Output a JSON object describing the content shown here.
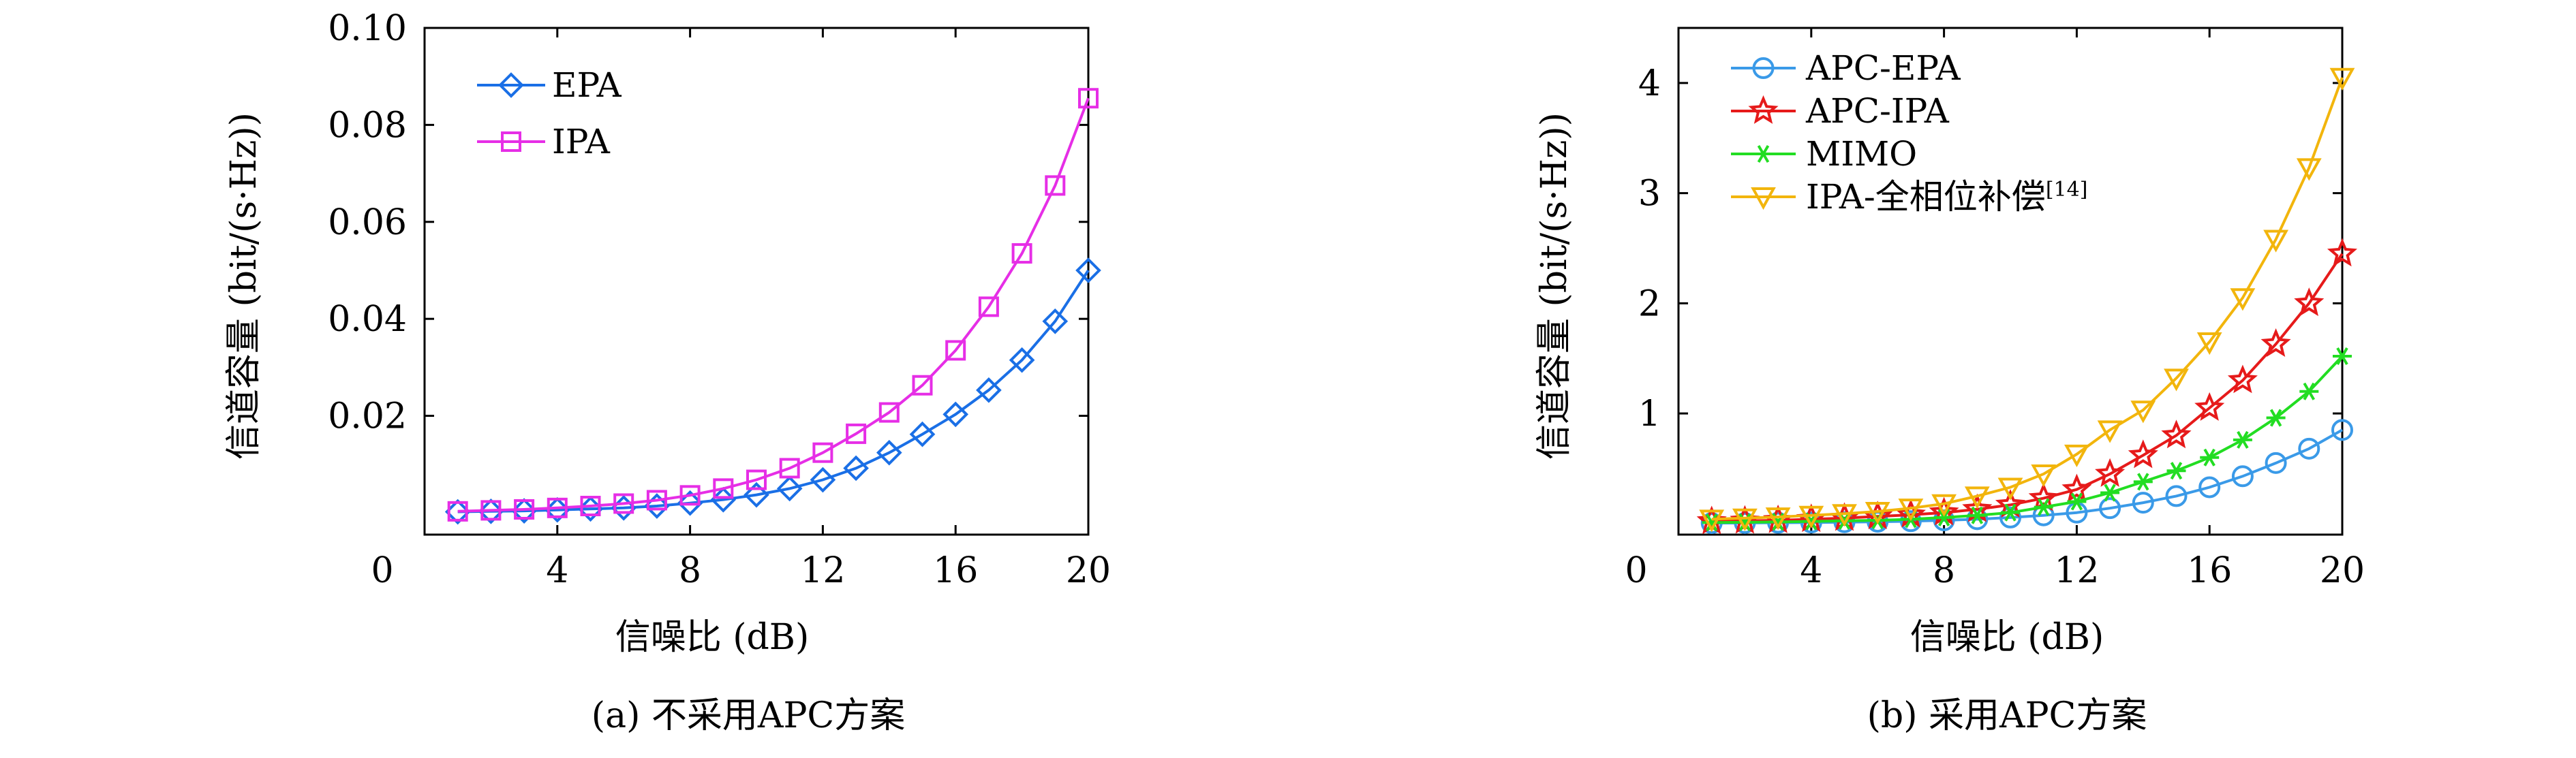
{
  "colors": {
    "EPA": "#1a6fe6",
    "IPA": "#e62ee6",
    "APC-EPA": "#3a9ae8",
    "APC-IPA": "#e61a1a",
    "MIMO": "#22dd22",
    "IPA-全相位补偿": "#f2b50c"
  },
  "chart_data": [
    {
      "type": "line",
      "caption": "(a) 不采用APC方案",
      "xlabel": "信噪比 (dB)",
      "ylabel": "信道容量 (bit/(s·Hz))",
      "xlim": [
        0,
        20
      ],
      "ylim": [
        -0.0045,
        0.1
      ],
      "xticks": [
        0,
        4,
        8,
        12,
        16,
        20
      ],
      "xtick_labels": [
        "0",
        "4",
        "8",
        "12",
        "16",
        "20"
      ],
      "yticks": [
        0.02,
        0.04,
        0.06,
        0.08,
        0.1
      ],
      "ytick_labels": [
        "0.02",
        "0.04",
        "0.06",
        "0.08",
        "0.10"
      ],
      "grid": false,
      "legend_position": "top-left",
      "x": [
        1,
        2,
        3,
        4,
        5,
        6,
        7,
        8,
        9,
        10,
        11,
        12,
        13,
        14,
        15,
        16,
        17,
        18,
        19,
        20
      ],
      "series": [
        {
          "name": "EPA",
          "marker": "diamond",
          "values": [
            0.0002,
            0.0003,
            0.0004,
            0.0006,
            0.0008,
            0.001,
            0.0014,
            0.002,
            0.0027,
            0.0037,
            0.005,
            0.0068,
            0.0092,
            0.0124,
            0.0162,
            0.0203,
            0.0253,
            0.0315,
            0.0395,
            0.05
          ]
        },
        {
          "name": "IPA",
          "marker": "square",
          "values": [
            0.0003,
            0.0005,
            0.0007,
            0.001,
            0.0014,
            0.0019,
            0.0026,
            0.0036,
            0.005,
            0.0068,
            0.0092,
            0.0124,
            0.0163,
            0.0207,
            0.0263,
            0.0335,
            0.0425,
            0.0535,
            0.0675,
            0.0855
          ]
        }
      ]
    },
    {
      "type": "line",
      "caption": "(b) 采用APC方案",
      "xlabel": "信噪比 (dB)",
      "ylabel": "信道容量 (bit/(s·Hz))",
      "xlim": [
        0,
        20
      ],
      "ylim": [
        -0.1,
        4.5
      ],
      "xticks": [
        0,
        4,
        8,
        12,
        16,
        20
      ],
      "xtick_labels": [
        "0",
        "4",
        "8",
        "12",
        "16",
        "20"
      ],
      "yticks": [
        1,
        2,
        3,
        4
      ],
      "ytick_labels": [
        "1",
        "2",
        "3",
        "4"
      ],
      "grid": false,
      "legend_position": "top-left",
      "legend_labels": [
        "APC-EPA",
        "APC-IPA",
        "MIMO",
        "IPA-全相位补偿"
      ],
      "legend_reference": "[14]",
      "x": [
        1,
        2,
        3,
        4,
        5,
        6,
        7,
        8,
        9,
        10,
        11,
        12,
        13,
        14,
        15,
        16,
        17,
        18,
        19,
        20
      ],
      "series": [
        {
          "name": "APC-EPA",
          "marker": "circle",
          "values": [
            0.005,
            0.006,
            0.008,
            0.01,
            0.013,
            0.017,
            0.022,
            0.03,
            0.04,
            0.055,
            0.075,
            0.1,
            0.14,
            0.19,
            0.25,
            0.33,
            0.43,
            0.55,
            0.68,
            0.85
          ]
        },
        {
          "name": "APC-IPA",
          "marker": "star",
          "values": [
            0.02,
            0.025,
            0.03,
            0.04,
            0.05,
            0.065,
            0.08,
            0.1,
            0.13,
            0.17,
            0.23,
            0.31,
            0.45,
            0.62,
            0.8,
            1.05,
            1.3,
            1.63,
            2.0,
            2.45
          ]
        },
        {
          "name": "MIMO",
          "marker": "asterisk",
          "values": [
            0.01,
            0.012,
            0.015,
            0.02,
            0.025,
            0.03,
            0.04,
            0.055,
            0.075,
            0.1,
            0.15,
            0.2,
            0.28,
            0.38,
            0.48,
            0.6,
            0.76,
            0.96,
            1.2,
            1.52
          ]
        },
        {
          "name": "IPA-全相位补偿",
          "marker": "triangle-down",
          "values": [
            0.04,
            0.05,
            0.06,
            0.075,
            0.09,
            0.11,
            0.14,
            0.18,
            0.25,
            0.33,
            0.45,
            0.63,
            0.85,
            1.03,
            1.32,
            1.65,
            2.05,
            2.58,
            3.23,
            4.05
          ]
        }
      ]
    }
  ]
}
